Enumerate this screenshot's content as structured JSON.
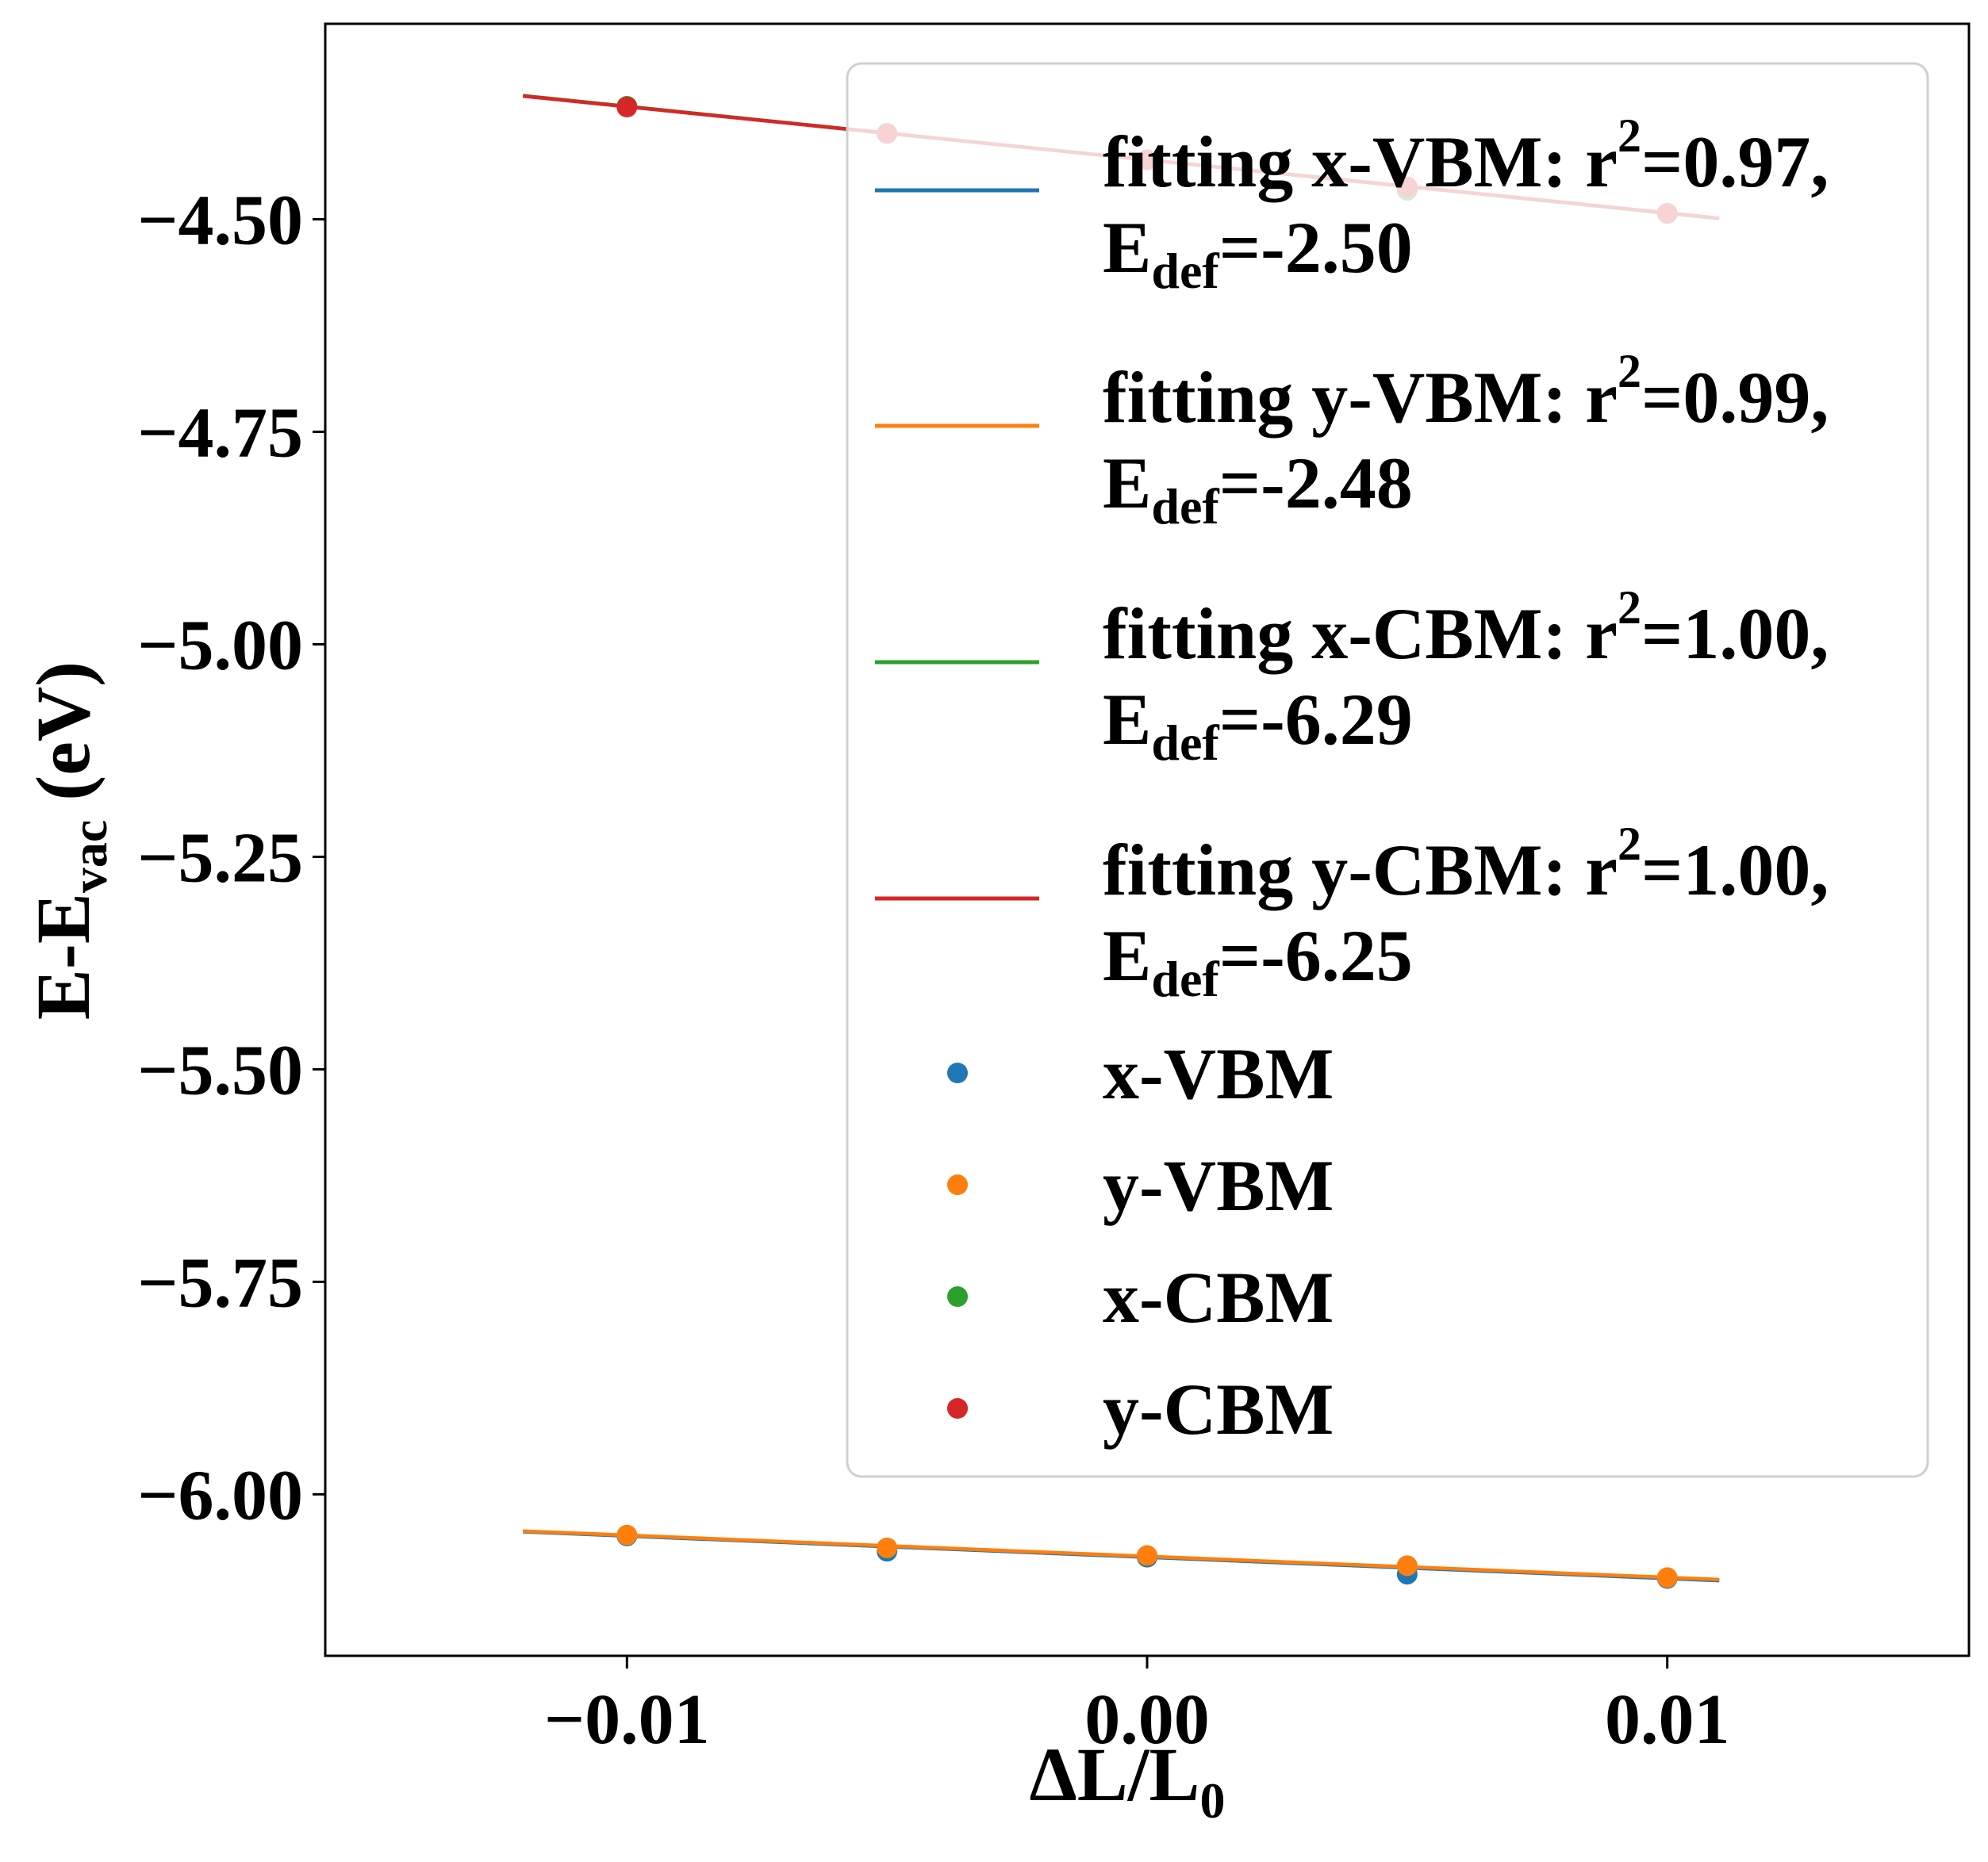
{
  "chart_data": {
    "type": "scatter",
    "xlabel": {
      "main": "ΔL/L",
      "sub": "0"
    },
    "ylabel": {
      "main": "E-E",
      "sub": "vac",
      "tail": " (eV)"
    },
    "xlim": [
      -0.0158,
      0.0158
    ],
    "ylim": [
      -6.19,
      -4.27
    ],
    "xticks": [
      -0.01,
      0.0,
      0.01
    ],
    "xtick_labels": [
      "−0.01",
      "0.00",
      "0.01"
    ],
    "yticks": [
      -4.5,
      -4.75,
      -5.0,
      -5.25,
      -5.5,
      -5.75,
      -6.0
    ],
    "ytick_labels": [
      "−4.50",
      "−4.75",
      "−5.00",
      "−5.25",
      "−5.50",
      "−5.75",
      "−6.00"
    ],
    "grid": false,
    "legend_position": "upper-right",
    "fit_x_range": [
      -0.012,
      0.011
    ],
    "fits": [
      {
        "key": "x-VBM",
        "color": "#1f77b4",
        "label_main": "fitting x-VBM: r",
        "label_sup": "2",
        "label_tail": "=0.97,",
        "edef_value": "=-2.50",
        "slope": -2.5,
        "intercept": -6.074
      },
      {
        "key": "y-VBM",
        "color": "#ff7f0e",
        "label_main": "fitting y-VBM: r",
        "label_sup": "2",
        "label_tail": "=0.99,",
        "edef_value": "=-2.48",
        "slope": -2.48,
        "intercept": -6.073
      },
      {
        "key": "x-CBM",
        "color": "#2ca02c",
        "label_main": "fitting x-CBM: r",
        "label_sup": "2",
        "label_tail": "=1.00,",
        "edef_value": "=-6.29",
        "slope": -6.29,
        "intercept": -4.43
      },
      {
        "key": "y-CBM",
        "color": "#d62728",
        "label_main": "fitting y-CBM: r",
        "label_sup": "2",
        "label_tail": "=1.00,",
        "edef_value": "=-6.25",
        "slope": -6.25,
        "intercept": -4.43
      }
    ],
    "edef_symbol": {
      "main": "E",
      "sub": "def"
    },
    "series": [
      {
        "name": "x-VBM",
        "color": "#1f77b4",
        "x": [
          -0.01,
          -0.005,
          0.0,
          0.005,
          0.01
        ],
        "y": [
          -6.049,
          -6.067,
          -6.074,
          -6.094,
          -6.099
        ]
      },
      {
        "name": "y-VBM",
        "color": "#ff7f0e",
        "x": [
          -0.01,
          -0.005,
          0.0,
          0.005,
          0.01
        ],
        "y": [
          -6.048,
          -6.063,
          -6.072,
          -6.084,
          -6.098
        ]
      },
      {
        "name": "x-CBM",
        "color": "#2ca02c",
        "x": [
          -0.01,
          -0.005,
          0.0,
          0.005,
          0.01
        ],
        "y": [
          -4.367,
          -4.399,
          -4.43,
          -4.466,
          -4.493
        ]
      },
      {
        "name": "y-CBM",
        "color": "#d62728",
        "x": [
          -0.01,
          -0.005,
          0.0,
          0.005,
          0.01
        ],
        "y": [
          -4.368,
          -4.399,
          -4.43,
          -4.462,
          -4.493
        ]
      }
    ]
  }
}
